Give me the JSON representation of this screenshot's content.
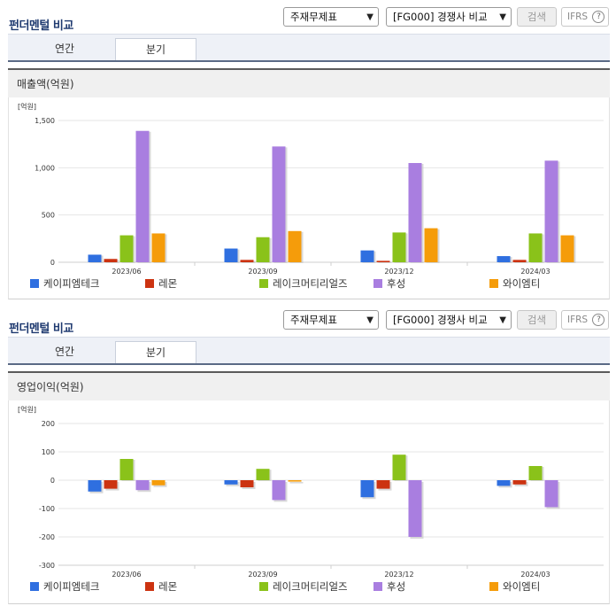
{
  "panel_title": "펀더멘털 비교",
  "controls": {
    "statement_select": "주재무제표",
    "compare_select": "[FG000] 경쟁사 비교",
    "search_button": "검색",
    "ifrs_button": "IFRS",
    "help_glyph": "?"
  },
  "tabs": [
    {
      "label": "연간",
      "active": false
    },
    {
      "label": "분기",
      "active": true
    }
  ],
  "colors": {
    "title": "#1f3a70",
    "series": [
      "#2f6fe0",
      "#cc3311",
      "#8ac21a",
      "#a97ee0",
      "#f59c0a"
    ]
  },
  "chart_data": [
    {
      "type": "bar",
      "section_label": "매출액(억원)",
      "unit_label": "[억원]",
      "categories": [
        "2023/06",
        "2023/09",
        "2023/12",
        "2024/03"
      ],
      "ylim": [
        0,
        1500
      ],
      "yticks": [
        {
          "value": 0,
          "label": "0"
        },
        {
          "value": 500,
          "label": "500"
        },
        {
          "value": 1000,
          "label": "1,000"
        },
        {
          "value": 1500,
          "label": "1,500"
        }
      ],
      "series": [
        {
          "name": "케이피엠테크",
          "values": [
            80,
            145,
            125,
            65
          ]
        },
        {
          "name": "레몬",
          "values": [
            35,
            25,
            15,
            25
          ]
        },
        {
          "name": "레이크머티리얼즈",
          "values": [
            285,
            265,
            315,
            305
          ]
        },
        {
          "name": "후성",
          "values": [
            1390,
            1225,
            1050,
            1075
          ]
        },
        {
          "name": "와이엠티",
          "values": [
            305,
            330,
            360,
            285
          ]
        }
      ]
    },
    {
      "type": "bar",
      "section_label": "영업이익(억원)",
      "unit_label": "[억원]",
      "categories": [
        "2023/06",
        "2023/09",
        "2023/12",
        "2024/03"
      ],
      "ylim": [
        -300,
        200
      ],
      "yticks": [
        {
          "value": 200,
          "label": "200"
        },
        {
          "value": 100,
          "label": "100"
        },
        {
          "value": 0,
          "label": "0"
        },
        {
          "value": -100,
          "label": "-100"
        },
        {
          "value": -200,
          "label": "-200"
        },
        {
          "value": -300,
          "label": "-300"
        }
      ],
      "series": [
        {
          "name": "케이피엠테크",
          "values": [
            -40,
            -15,
            -60,
            -20
          ]
        },
        {
          "name": "레몬",
          "values": [
            -30,
            -25,
            -30,
            -15
          ]
        },
        {
          "name": "레이크머티리얼즈",
          "values": [
            75,
            40,
            90,
            50
          ]
        },
        {
          "name": "후성",
          "values": [
            -35,
            -70,
            -200,
            -95
          ]
        },
        {
          "name": "와이엠티",
          "values": [
            -18,
            -5,
            0,
            0
          ]
        }
      ]
    }
  ]
}
